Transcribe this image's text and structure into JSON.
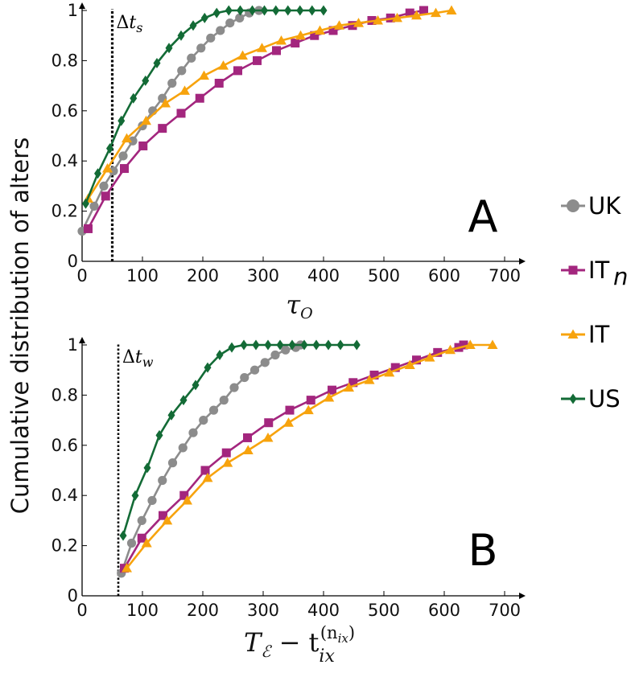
{
  "ylabel": "Cumulative distribution of alters",
  "legend": [
    {
      "name": "UK",
      "color": "#8c8c8c",
      "marker": "circle"
    },
    {
      "name": "IT",
      "sub": "n",
      "color": "#a3267e",
      "marker": "square"
    },
    {
      "name": "IT",
      "color": "#f7a30d",
      "marker": "triangle"
    },
    {
      "name": "US",
      "color": "#136b36",
      "marker": "diamond"
    }
  ],
  "chart_data": [
    {
      "type": "line",
      "panel": "A",
      "xlabel": "τ_O",
      "xlim": [
        0,
        700
      ],
      "ylim": [
        0,
        1
      ],
      "x_ticks": [
        0,
        100,
        200,
        300,
        400,
        500,
        600,
        700
      ],
      "y_ticks": [
        "0",
        "0.2",
        "0.4",
        "0.6",
        "0.8",
        "1"
      ],
      "vline": {
        "x": 50,
        "label": "Δt_s"
      },
      "series": [
        {
          "name": "UK",
          "x": [
            0,
            20,
            36,
            52,
            68,
            84,
            100,
            117,
            133,
            149,
            165,
            181,
            197,
            213,
            229,
            245,
            261,
            277,
            293
          ],
          "y": [
            0.12,
            0.22,
            0.3,
            0.36,
            0.42,
            0.48,
            0.54,
            0.6,
            0.65,
            0.71,
            0.76,
            0.81,
            0.85,
            0.89,
            0.92,
            0.95,
            0.97,
            0.99,
            1.0
          ]
        },
        {
          "name": "IT_n",
          "x": [
            10,
            39,
            70,
            101,
            133,
            164,
            195,
            227,
            258,
            290,
            322,
            353,
            385,
            416,
            448,
            480,
            511,
            543,
            566
          ],
          "y": [
            0.13,
            0.26,
            0.37,
            0.46,
            0.53,
            0.59,
            0.65,
            0.71,
            0.76,
            0.8,
            0.84,
            0.87,
            0.9,
            0.92,
            0.94,
            0.96,
            0.97,
            0.99,
            1.0
          ]
        },
        {
          "name": "IT",
          "x": [
            10,
            42,
            74,
            106,
            138,
            170,
            202,
            234,
            266,
            298,
            330,
            362,
            394,
            426,
            458,
            490,
            522,
            554,
            586,
            612
          ],
          "y": [
            0.25,
            0.37,
            0.49,
            0.56,
            0.63,
            0.68,
            0.74,
            0.78,
            0.82,
            0.85,
            0.88,
            0.9,
            0.92,
            0.94,
            0.95,
            0.96,
            0.97,
            0.98,
            0.99,
            1.0
          ]
        },
        {
          "name": "US",
          "x": [
            6,
            26,
            46,
            65,
            85,
            105,
            124,
            144,
            164,
            184,
            203,
            223,
            243,
            262,
            282,
            302,
            321,
            341,
            361,
            381,
            400
          ],
          "y": [
            0.23,
            0.35,
            0.45,
            0.56,
            0.65,
            0.72,
            0.79,
            0.85,
            0.9,
            0.94,
            0.97,
            0.99,
            1.0,
            1.0,
            1.0,
            1.0,
            1.0,
            1.0,
            1.0,
            1.0,
            1.0
          ]
        }
      ]
    },
    {
      "type": "line",
      "panel": "B",
      "xlabel": "T_ℰ − t_ix^(n_ix)",
      "xlim": [
        0,
        700
      ],
      "ylim": [
        0,
        1
      ],
      "x_ticks": [
        0,
        100,
        200,
        300,
        400,
        500,
        600,
        700
      ],
      "y_ticks": [
        "0",
        "0.2",
        "0.4",
        "0.6",
        "0.8",
        "1"
      ],
      "vline": {
        "x": 60,
        "label": "Δt_w"
      },
      "series": [
        {
          "name": "UK",
          "x": [
            65,
            82,
            99,
            116,
            133,
            150,
            167,
            184,
            201,
            218,
            235,
            252,
            269,
            286,
            303,
            320,
            337,
            354,
            362
          ],
          "y": [
            0.09,
            0.21,
            0.3,
            0.38,
            0.46,
            0.53,
            0.59,
            0.65,
            0.7,
            0.74,
            0.78,
            0.83,
            0.87,
            0.9,
            0.93,
            0.96,
            0.98,
            0.99,
            1.0
          ]
        },
        {
          "name": "IT_n",
          "x": [
            70,
            99,
            134,
            169,
            204,
            239,
            274,
            309,
            344,
            379,
            414,
            449,
            484,
            519,
            554,
            589,
            624,
            632
          ],
          "y": [
            0.11,
            0.23,
            0.32,
            0.4,
            0.5,
            0.57,
            0.63,
            0.69,
            0.74,
            0.78,
            0.82,
            0.85,
            0.88,
            0.91,
            0.94,
            0.97,
            0.99,
            1.0
          ]
        },
        {
          "name": "IT",
          "x": [
            74,
            107,
            141,
            174,
            208,
            241,
            275,
            308,
            342,
            375,
            409,
            442,
            476,
            509,
            543,
            576,
            610,
            643,
            680
          ],
          "y": [
            0.11,
            0.21,
            0.3,
            0.38,
            0.47,
            0.53,
            0.58,
            0.63,
            0.69,
            0.74,
            0.79,
            0.83,
            0.86,
            0.89,
            0.92,
            0.95,
            0.98,
            1.0,
            1.0
          ]
        },
        {
          "name": "US",
          "x": [
            68,
            88,
            108,
            128,
            148,
            168,
            188,
            208,
            228,
            248,
            268,
            288,
            308,
            328,
            348,
            368,
            388,
            408,
            428,
            455
          ],
          "y": [
            0.24,
            0.4,
            0.51,
            0.64,
            0.72,
            0.78,
            0.84,
            0.91,
            0.96,
            0.99,
            1.0,
            1.0,
            1.0,
            1.0,
            1.0,
            1.0,
            1.0,
            1.0,
            1.0,
            1.0
          ]
        }
      ]
    }
  ]
}
